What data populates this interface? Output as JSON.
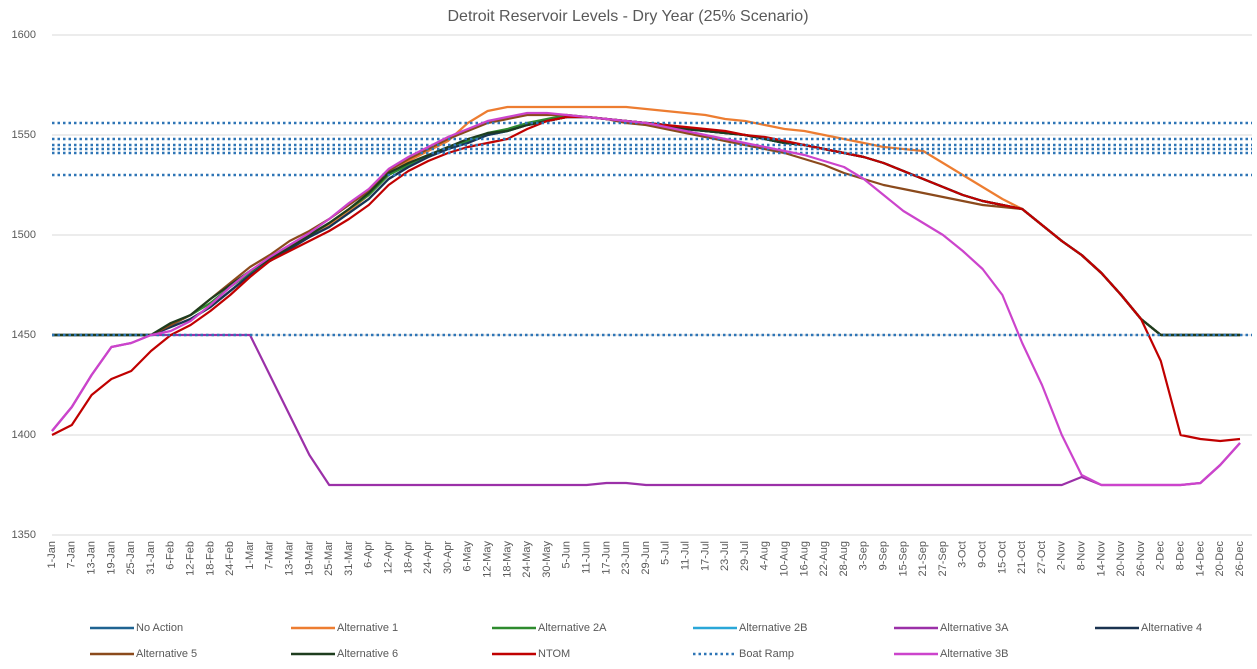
{
  "chart_data": {
    "type": "line",
    "title": "Detroit Reservoir Levels - Dry Year (25% Scenario)",
    "categories": [
      "1-Jan",
      "7-Jan",
      "13-Jan",
      "19-Jan",
      "25-Jan",
      "31-Jan",
      "6-Feb",
      "12-Feb",
      "18-Feb",
      "24-Feb",
      "1-Mar",
      "7-Mar",
      "13-Mar",
      "19-Mar",
      "25-Mar",
      "31-Mar",
      "6-Apr",
      "12-Apr",
      "18-Apr",
      "24-Apr",
      "30-Apr",
      "6-May",
      "12-May",
      "18-May",
      "24-May",
      "30-May",
      "5-Jun",
      "11-Jun",
      "17-Jun",
      "23-Jun",
      "29-Jun",
      "5-Jul",
      "11-Jul",
      "17-Jul",
      "23-Jul",
      "29-Jul",
      "4-Aug",
      "10-Aug",
      "16-Aug",
      "22-Aug",
      "28-Aug",
      "3-Sep",
      "9-Sep",
      "15-Sep",
      "21-Sep",
      "27-Sep",
      "3-Oct",
      "9-Oct",
      "15-Oct",
      "21-Oct",
      "27-Oct",
      "2-Nov",
      "8-Nov",
      "14-Nov",
      "20-Nov",
      "26-Nov",
      "2-Dec",
      "8-Dec",
      "14-Dec",
      "20-Dec",
      "26-Dec"
    ],
    "ylim": [
      1350,
      1600
    ],
    "yticks": [
      1350,
      1400,
      1450,
      1500,
      1550,
      1600
    ],
    "grid": true,
    "legend": "bottom",
    "series": [
      {
        "name": "No Action",
        "color": "#1f6391",
        "values": [
          1450,
          1450,
          1450,
          1450,
          1450,
          1450,
          1454,
          1458,
          1464,
          1472,
          1480,
          1487,
          1493,
          1499,
          1504,
          1511,
          1518,
          1528,
          1534,
          1539,
          1543,
          1546,
          1550,
          1552,
          1555,
          1557,
          1559,
          1559,
          1558,
          1557,
          1556,
          1555,
          1553,
          1552,
          1551,
          1550,
          1548,
          1546,
          1545,
          1543,
          1541,
          1539,
          1536,
          1532,
          1528,
          1524,
          1520,
          1517,
          1515,
          1513,
          1505,
          1497,
          1490,
          1481,
          1470,
          1458,
          1450,
          1450,
          1450,
          1450,
          1450
        ]
      },
      {
        "name": "Alternative 1",
        "color": "#ed7d31",
        "values": [
          1450,
          1450,
          1450,
          1450,
          1450,
          1450,
          1454,
          1458,
          1464,
          1472,
          1480,
          1487,
          1493,
          1499,
          1505,
          1512,
          1520,
          1530,
          1537,
          1542,
          1547,
          1556,
          1562,
          1564,
          1564,
          1564,
          1564,
          1564,
          1564,
          1564,
          1563,
          1562,
          1561,
          1560,
          1558,
          1557,
          1555,
          1553,
          1552,
          1550,
          1548,
          1546,
          1544,
          1543,
          1542,
          1536,
          1530,
          1524,
          1518,
          1513,
          1505,
          1497,
          1490,
          1481,
          1470,
          1458,
          1450,
          1450,
          1450,
          1450,
          1450
        ]
      },
      {
        "name": "Alternative 2A",
        "color": "#2e8b2e",
        "values": [
          1450,
          1450,
          1450,
          1450,
          1450,
          1450,
          1455,
          1460,
          1466,
          1474,
          1481,
          1488,
          1494,
          1500,
          1506,
          1513,
          1520,
          1530,
          1535,
          1539,
          1543,
          1547,
          1551,
          1553,
          1556,
          1558,
          1560,
          1559,
          1558,
          1557,
          1556,
          1555,
          1553,
          1552,
          1551,
          1550,
          1548,
          1546,
          1545,
          1543,
          1541,
          1539,
          1536,
          1532,
          1528,
          1524,
          1520,
          1517,
          1515,
          1513,
          1505,
          1497,
          1490,
          1481,
          1470,
          1458,
          1450,
          1450,
          1450,
          1450,
          1450
        ]
      },
      {
        "name": "Alternative 2B",
        "color": "#2aa7d8",
        "values": [
          1450,
          1450,
          1450,
          1450,
          1450,
          1450,
          1454,
          1458,
          1464,
          1472,
          1480,
          1487,
          1493,
          1499,
          1504,
          1511,
          1518,
          1528,
          1534,
          1539,
          1543,
          1546,
          1550,
          1552,
          1555,
          1557,
          1559,
          1559,
          1558,
          1557,
          1556,
          1555,
          1553,
          1552,
          1551,
          1550,
          1548,
          1546,
          1545,
          1543,
          1541,
          1539,
          1536,
          1532,
          1528,
          1524,
          1520,
          1517,
          1515,
          1513,
          1505,
          1497,
          1490,
          1481,
          1470,
          1458,
          1450,
          1450,
          1450,
          1450,
          1450
        ]
      },
      {
        "name": "Alternative 3A",
        "color": "#9b30a8",
        "values": [
          1402,
          1414,
          1430,
          1444,
          1446,
          1450,
          1450,
          1450,
          1450,
          1450,
          1450,
          1430,
          1410,
          1390,
          1375,
          1375,
          1375,
          1375,
          1375,
          1375,
          1375,
          1375,
          1375,
          1375,
          1375,
          1375,
          1375,
          1375,
          1376,
          1376,
          1375,
          1375,
          1375,
          1375,
          1375,
          1375,
          1375,
          1375,
          1375,
          1375,
          1375,
          1375,
          1375,
          1375,
          1375,
          1375,
          1375,
          1375,
          1375,
          1375,
          1375,
          1375,
          1379,
          1375,
          1375,
          1375,
          1375,
          1375,
          1376,
          1385,
          1396
        ]
      },
      {
        "name": "Alternative 4",
        "color": "#1a3350",
        "values": [
          1450,
          1450,
          1450,
          1450,
          1450,
          1450,
          1454,
          1458,
          1464,
          1472,
          1480,
          1487,
          1493,
          1499,
          1504,
          1511,
          1518,
          1528,
          1534,
          1539,
          1543,
          1546,
          1550,
          1552,
          1555,
          1557,
          1559,
          1559,
          1558,
          1557,
          1556,
          1555,
          1553,
          1552,
          1551,
          1550,
          1548,
          1546,
          1545,
          1543,
          1541,
          1539,
          1536,
          1532,
          1528,
          1524,
          1520,
          1517,
          1515,
          1513,
          1505,
          1497,
          1490,
          1481,
          1470,
          1458,
          1450,
          1450,
          1450,
          1450,
          1450
        ]
      },
      {
        "name": "Alternative 5",
        "color": "#8b4a1c",
        "values": [
          1450,
          1450,
          1450,
          1450,
          1450,
          1450,
          1455,
          1460,
          1468,
          1476,
          1484,
          1490,
          1497,
          1502,
          1508,
          1515,
          1522,
          1532,
          1538,
          1543,
          1548,
          1552,
          1556,
          1558,
          1560,
          1560,
          1560,
          1559,
          1558,
          1556,
          1555,
          1553,
          1551,
          1549,
          1547,
          1545,
          1543,
          1541,
          1538,
          1535,
          1531,
          1528,
          1525,
          1523,
          1521,
          1519,
          1517,
          1515,
          1514,
          1513,
          1505,
          1497,
          1490,
          1481,
          1470,
          1458,
          1450,
          1450,
          1450,
          1450,
          1450
        ]
      },
      {
        "name": "Alternative 6",
        "color": "#1e3d1e",
        "values": [
          1450,
          1450,
          1450,
          1450,
          1450,
          1450,
          1456,
          1460,
          1468,
          1475,
          1482,
          1488,
          1494,
          1500,
          1506,
          1513,
          1521,
          1531,
          1536,
          1540,
          1544,
          1548,
          1551,
          1552,
          1555,
          1557,
          1559,
          1559,
          1558,
          1557,
          1556,
          1555,
          1553,
          1552,
          1551,
          1550,
          1548,
          1546,
          1545,
          1543,
          1541,
          1539,
          1536,
          1532,
          1528,
          1524,
          1520,
          1517,
          1515,
          1513,
          1505,
          1497,
          1490,
          1481,
          1470,
          1458,
          1450,
          1450,
          1450,
          1450,
          1450
        ]
      },
      {
        "name": "NTOM",
        "color": "#c00000",
        "values": [
          1400,
          1405,
          1420,
          1428,
          1432,
          1442,
          1450,
          1455,
          1462,
          1470,
          1479,
          1487,
          1492,
          1497,
          1502,
          1508,
          1515,
          1525,
          1532,
          1537,
          1541,
          1544,
          1546,
          1548,
          1553,
          1557,
          1559,
          1559,
          1558,
          1557,
          1556,
          1555,
          1554,
          1553,
          1552,
          1550,
          1549,
          1547,
          1545,
          1543,
          1541,
          1539,
          1536,
          1532,
          1528,
          1524,
          1520,
          1517,
          1515,
          1513,
          1505,
          1497,
          1490,
          1481,
          1470,
          1458,
          1437,
          1400,
          1398,
          1397,
          1398
        ]
      },
      {
        "name": "Boat Ramp",
        "color": "#2e75b6",
        "style": "dotted",
        "levels": [
          1556,
          1548,
          1545,
          1543,
          1541,
          1530,
          1450
        ]
      },
      {
        "name": "Alternative 3B",
        "color": "#cc44cc",
        "values": [
          1402,
          1414,
          1430,
          1444,
          1446,
          1450,
          1452,
          1457,
          1465,
          1474,
          1482,
          1489,
          1495,
          1501,
          1508,
          1516,
          1523,
          1533,
          1539,
          1544,
          1549,
          1553,
          1557,
          1559,
          1561,
          1561,
          1560,
          1559,
          1558,
          1557,
          1556,
          1554,
          1552,
          1550,
          1548,
          1546,
          1544,
          1542,
          1540,
          1537,
          1534,
          1528,
          1520,
          1512,
          1506,
          1500,
          1492,
          1483,
          1470,
          1446,
          1425,
          1400,
          1380,
          1375,
          1375,
          1375,
          1375,
          1375,
          1376,
          1385,
          1396
        ]
      }
    ]
  }
}
